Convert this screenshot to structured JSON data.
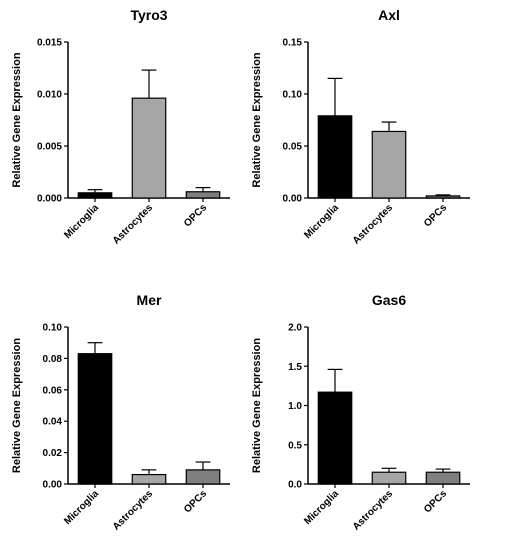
{
  "chart_data": [
    {
      "type": "bar",
      "title": "Tyro3",
      "ylabel": "Relative Gene Expression",
      "xlabel": "",
      "categories": [
        "Microglia",
        "Astrocytes",
        "OPCs"
      ],
      "values": [
        0.0005,
        0.0096,
        0.0006
      ],
      "errors": [
        0.0003,
        0.0027,
        0.0004
      ],
      "colors": [
        "#000000",
        "#a6a6a6",
        "#7f7f7f"
      ],
      "ylim": [
        0,
        0.015
      ],
      "yticks": [
        0,
        0.005,
        0.01,
        0.015
      ],
      "ytick_labels": [
        "0.000",
        "0.005",
        "0.010",
        "0.015"
      ],
      "grid": false,
      "legend": "none"
    },
    {
      "type": "bar",
      "title": "Axl",
      "ylabel": "Relative Gene Expression",
      "xlabel": "",
      "categories": [
        "Microglia",
        "Astrocytes",
        "OPCs"
      ],
      "values": [
        0.079,
        0.064,
        0.002
      ],
      "errors": [
        0.036,
        0.009,
        0.001
      ],
      "colors": [
        "#000000",
        "#a6a6a6",
        "#7f7f7f"
      ],
      "ylim": [
        0,
        0.15
      ],
      "yticks": [
        0,
        0.05,
        0.1,
        0.15
      ],
      "ytick_labels": [
        "0.00",
        "0.05",
        "0.10",
        "0.15"
      ],
      "grid": false,
      "legend": "none"
    },
    {
      "type": "bar",
      "title": "Mer",
      "ylabel": "Relative Gene Expression",
      "xlabel": "",
      "categories": [
        "Microglia",
        "Astrocytes",
        "OPCs"
      ],
      "values": [
        0.083,
        0.006,
        0.009
      ],
      "errors": [
        0.007,
        0.003,
        0.005
      ],
      "colors": [
        "#000000",
        "#a6a6a6",
        "#7f7f7f"
      ],
      "ylim": [
        0,
        0.1
      ],
      "yticks": [
        0,
        0.02,
        0.04,
        0.06,
        0.08,
        0.1
      ],
      "ytick_labels": [
        "0.00",
        "0.02",
        "0.04",
        "0.06",
        "0.08",
        "0.10"
      ],
      "grid": false,
      "legend": "none"
    },
    {
      "type": "bar",
      "title": "Gas6",
      "ylabel": "Relative Gene Expression",
      "xlabel": "",
      "categories": [
        "Microglia",
        "Astrocytes",
        "OPCs"
      ],
      "values": [
        1.17,
        0.15,
        0.15
      ],
      "errors": [
        0.29,
        0.05,
        0.04
      ],
      "colors": [
        "#000000",
        "#a6a6a6",
        "#7f7f7f"
      ],
      "ylim": [
        0,
        2.0
      ],
      "yticks": [
        0,
        0.5,
        1.0,
        1.5,
        2.0
      ],
      "ytick_labels": [
        "0.0",
        "0.5",
        "1.0",
        "1.5",
        "2.0"
      ],
      "grid": false,
      "legend": "none"
    }
  ]
}
